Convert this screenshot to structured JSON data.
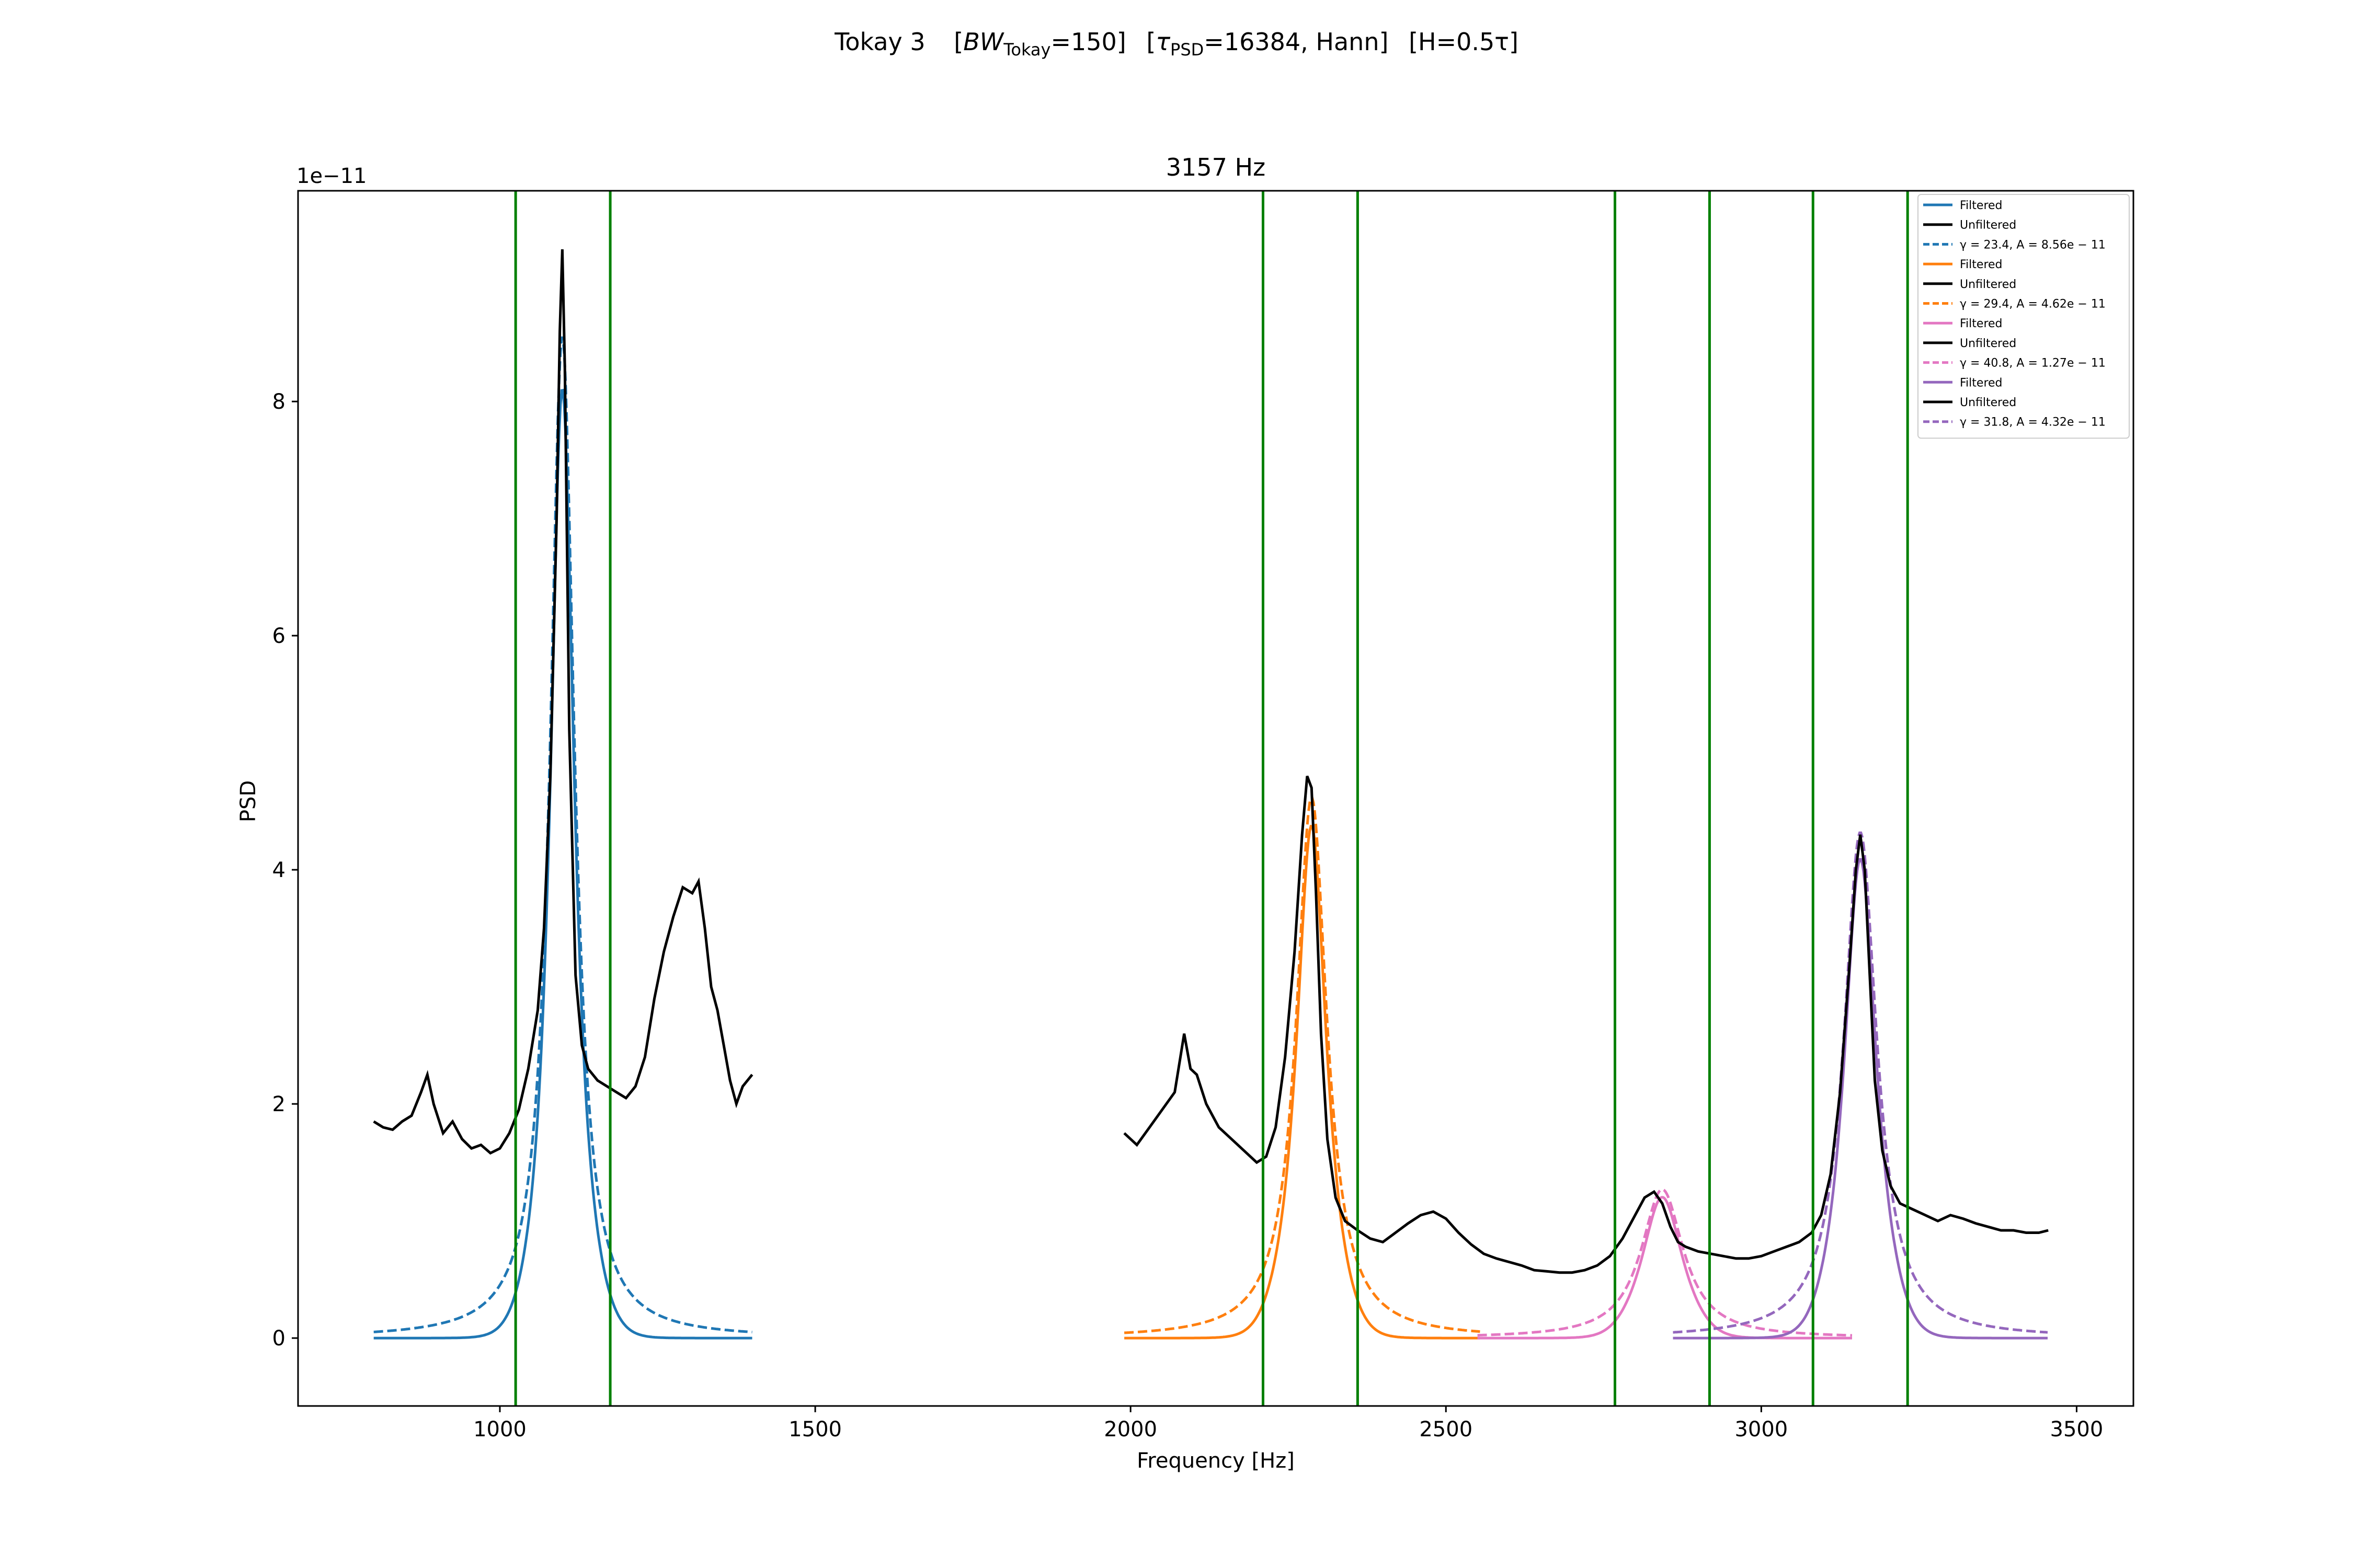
{
  "figure": {
    "suptitle": {
      "prefix": "Tokay 3",
      "bw_symbol": "BW",
      "bw_sub": "Tokay",
      "bw_value": "=150]",
      "tau_symbol": "τ",
      "tau_sub": "PSD",
      "tau_value": "=16384, Hann]",
      "h_part": "[H=0.5τ]"
    }
  },
  "chart_data": {
    "type": "line",
    "title": "3157 Hz",
    "xlabel": "Frequency [Hz]",
    "ylabel": "PSD",
    "y_offset_text": "1e−11",
    "y_scale": 1e-11,
    "xlim": [
      680,
      3590
    ],
    "ylim": [
      -0.58,
      9.8
    ],
    "xticks": [
      1000,
      1500,
      2000,
      2500,
      3000,
      3500
    ],
    "yticks": [
      0,
      2,
      4,
      6,
      8
    ],
    "grid": false,
    "legend_placement": "upper right",
    "vlines": {
      "color": "#008000",
      "x": [
        1025,
        1175,
        2210,
        2360,
        2768,
        2918,
        3082,
        3232
      ]
    },
    "peaks": [
      {
        "color": "#1f77b4",
        "center": 1099,
        "gamma": 23.4,
        "amplitude": 8.56,
        "range": [
          800,
          1400
        ],
        "filtered_band": [
          1025,
          1175
        ],
        "legend": [
          "Filtered",
          "Unfiltered",
          "γ = 23.4, A = 8.56e − 11"
        ]
      },
      {
        "color": "#ff7f0e",
        "center": 2287,
        "gamma": 29.4,
        "amplitude": 4.62,
        "range": [
          1990,
          2555
        ],
        "filtered_band": [
          2210,
          2360
        ],
        "legend": [
          "Filtered",
          "Unfiltered",
          "γ = 29.4, A = 4.62e − 11"
        ]
      },
      {
        "color": "#e377c2",
        "center": 2843,
        "gamma": 40.8,
        "amplitude": 1.27,
        "range": [
          2550,
          3145
        ],
        "filtered_band": [
          2768,
          2918
        ],
        "legend": [
          "Filtered",
          "Unfiltered",
          "γ = 40.8, A = 1.27e − 11"
        ]
      },
      {
        "color": "#9467bd",
        "center": 3157,
        "gamma": 31.8,
        "amplitude": 4.32,
        "range": [
          2860,
          3455
        ],
        "filtered_band": [
          3082,
          3232
        ],
        "legend": [
          "Filtered",
          "Unfiltered",
          "γ = 31.8, A = 4.32e − 11"
        ]
      }
    ],
    "unfiltered": {
      "color": "#000000",
      "segments": [
        {
          "x": [
            800,
            815,
            830,
            845,
            860,
            875,
            885,
            895,
            910,
            925,
            940,
            955,
            970,
            985,
            1000,
            1015,
            1030,
            1045,
            1060,
            1070,
            1080,
            1090,
            1095,
            1099,
            1103,
            1110,
            1120,
            1130,
            1140,
            1155,
            1170,
            1185,
            1200,
            1215,
            1230,
            1245,
            1260,
            1275,
            1290,
            1305,
            1315,
            1325,
            1335,
            1345,
            1355,
            1365,
            1375,
            1385,
            1400
          ],
          "y": [
            1.85,
            1.8,
            1.78,
            1.85,
            1.9,
            2.1,
            2.25,
            2.0,
            1.75,
            1.85,
            1.7,
            1.62,
            1.65,
            1.58,
            1.62,
            1.75,
            1.95,
            2.3,
            2.8,
            3.5,
            4.8,
            7.0,
            8.6,
            9.3,
            8.3,
            5.2,
            3.1,
            2.5,
            2.3,
            2.2,
            2.15,
            2.1,
            2.05,
            2.15,
            2.4,
            2.9,
            3.3,
            3.6,
            3.85,
            3.8,
            3.9,
            3.5,
            3.0,
            2.8,
            2.5,
            2.2,
            2.0,
            2.15,
            2.25
          ]
        },
        {
          "x": [
            1990,
            2010,
            2030,
            2050,
            2070,
            2085,
            2095,
            2105,
            2120,
            2140,
            2160,
            2180,
            2200,
            2215,
            2230,
            2245,
            2260,
            2272,
            2280,
            2287,
            2294,
            2302,
            2312,
            2325,
            2340,
            2360,
            2380,
            2400,
            2420,
            2440,
            2460,
            2480,
            2500,
            2520,
            2540,
            2560,
            2580,
            2600,
            2620,
            2640,
            2660,
            2680,
            2700,
            2720,
            2740,
            2760,
            2780,
            2800,
            2815,
            2830,
            2843,
            2856,
            2868,
            2880,
            2900,
            2920,
            2940,
            2960,
            2980,
            3000,
            3020,
            3040,
            3060,
            3080,
            3095,
            3110,
            3125,
            3140,
            3150,
            3157,
            3164,
            3172,
            3180,
            3192,
            3205,
            3220,
            3240,
            3260,
            3280,
            3300,
            3320,
            3340,
            3360,
            3380,
            3400,
            3420,
            3440,
            3455
          ],
          "y": [
            1.75,
            1.65,
            1.8,
            1.95,
            2.1,
            2.6,
            2.3,
            2.25,
            2.0,
            1.8,
            1.7,
            1.6,
            1.5,
            1.55,
            1.8,
            2.4,
            3.3,
            4.3,
            4.8,
            4.7,
            3.8,
            2.6,
            1.7,
            1.2,
            1.0,
            0.92,
            0.85,
            0.82,
            0.9,
            0.98,
            1.05,
            1.08,
            1.02,
            0.9,
            0.8,
            0.72,
            0.68,
            0.65,
            0.62,
            0.58,
            0.57,
            0.56,
            0.56,
            0.58,
            0.62,
            0.7,
            0.85,
            1.05,
            1.2,
            1.25,
            1.15,
            0.95,
            0.82,
            0.78,
            0.74,
            0.72,
            0.7,
            0.68,
            0.68,
            0.7,
            0.74,
            0.78,
            0.82,
            0.9,
            1.05,
            1.4,
            2.1,
            3.2,
            4.0,
            4.3,
            4.0,
            3.1,
            2.2,
            1.6,
            1.3,
            1.15,
            1.1,
            1.05,
            1.0,
            1.05,
            1.02,
            0.98,
            0.95,
            0.92,
            0.92,
            0.9,
            0.9,
            0.92
          ]
        }
      ]
    }
  }
}
